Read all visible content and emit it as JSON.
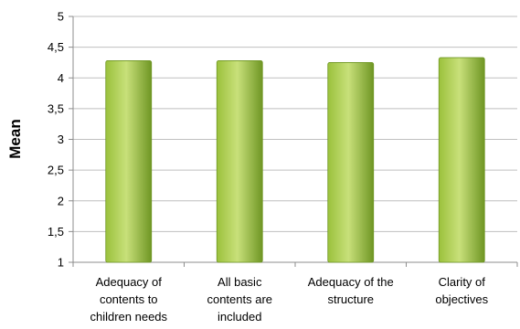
{
  "chart_data": {
    "type": "bar",
    "categories": [
      [
        "Adequacy of",
        "contents to",
        "children needs"
      ],
      [
        "All basic",
        "contents are",
        "included"
      ],
      [
        "Adequacy of the",
        "structure"
      ],
      [
        "Clarity of",
        "objectives"
      ]
    ],
    "values": [
      4.28,
      4.28,
      4.25,
      4.33
    ],
    "xlabel": "",
    "ylabel": "Mean",
    "ylim": [
      1,
      5
    ],
    "yticks": [
      "1",
      "1,5",
      "2",
      "2,5",
      "3",
      "3,5",
      "4",
      "4,5",
      "5"
    ],
    "grid": true,
    "legend": "none",
    "colors": {
      "bar_light": "#c8e07a",
      "bar_mid": "#9bc13c",
      "bar_dark": "#6f9624",
      "gridline": "#bfbfbf",
      "axis": "#8c8c8c"
    }
  }
}
